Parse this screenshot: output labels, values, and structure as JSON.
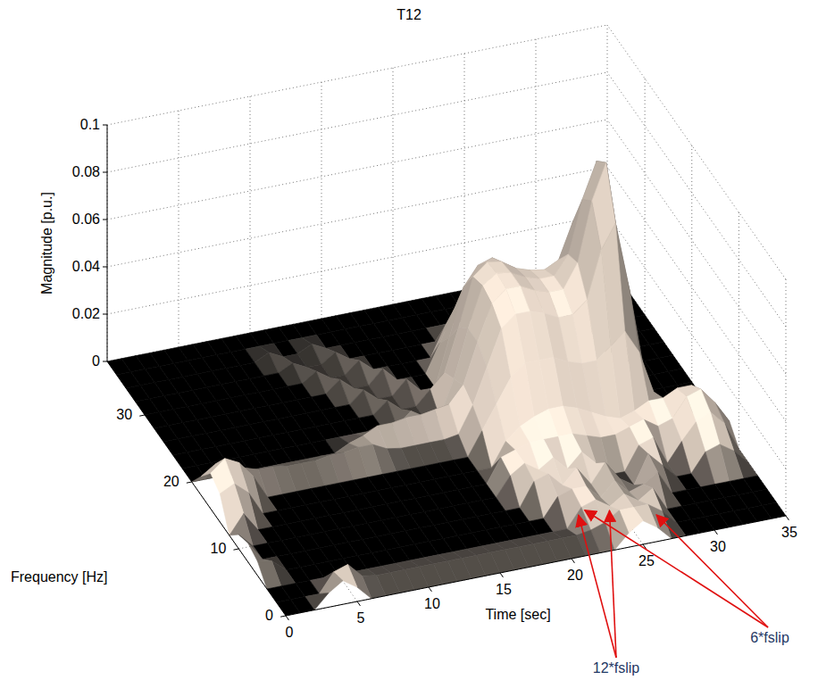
{
  "chart_data": {
    "type": "surface",
    "title": "T12",
    "x_label": "Time [sec]",
    "y_label": "Frequency [Hz]",
    "z_label": "Magnitude [p.u.]",
    "x": [
      0,
      1,
      2,
      3,
      4,
      5,
      6,
      7,
      8,
      9,
      10,
      11,
      12,
      13,
      14,
      15,
      16,
      17,
      18,
      19,
      20,
      21,
      22,
      23,
      24,
      25,
      26,
      27,
      28,
      29,
      30,
      31,
      32,
      33,
      34,
      35
    ],
    "y": [
      0,
      2,
      4,
      6,
      8,
      10,
      12,
      14,
      16,
      18,
      20,
      22,
      24,
      26,
      28,
      30,
      32,
      34,
      36,
      38
    ],
    "z": [
      [
        0,
        0,
        0,
        0.006,
        0.01,
        0.006,
        0,
        0,
        0,
        0,
        0,
        0,
        0,
        0,
        0,
        0,
        0,
        0,
        0,
        0,
        0,
        0,
        0,
        0,
        0.006,
        0.01,
        0.006,
        0,
        0,
        0,
        0,
        0,
        0,
        0,
        0,
        0
      ],
      [
        0,
        0,
        0,
        0,
        0.008,
        0.01,
        0.004,
        0.003,
        0.003,
        0.003,
        0.003,
        0.003,
        0.003,
        0.003,
        0.003,
        0.003,
        0.003,
        0.003,
        0.003,
        0.003,
        0.003,
        0.003,
        0.004,
        0.006,
        0.01,
        0.01,
        0.01,
        0.006,
        0,
        0,
        0,
        0,
        0,
        0,
        0,
        0
      ],
      [
        0,
        0,
        0,
        0,
        0,
        0,
        0,
        0,
        0,
        0,
        0,
        0,
        0,
        0,
        0,
        0,
        0,
        0,
        0,
        0,
        0,
        0,
        0.008,
        0.01,
        0.006,
        0.01,
        0.006,
        0.01,
        0,
        0,
        0,
        0,
        0,
        0,
        0,
        0
      ],
      [
        0.006,
        0.005,
        0,
        0,
        0,
        0,
        0,
        0,
        0,
        0,
        0,
        0,
        0,
        0,
        0,
        0,
        0,
        0,
        0,
        0,
        0,
        0.008,
        0.01,
        0.01,
        0.004,
        0.01,
        0.004,
        0.006,
        0.01,
        0,
        0,
        0,
        0,
        0,
        0,
        0
      ],
      [
        0.008,
        0,
        0,
        0,
        0,
        0,
        0,
        0,
        0,
        0,
        0,
        0,
        0,
        0,
        0,
        0,
        0,
        0,
        0,
        0,
        0.01,
        0.012,
        0.006,
        0.012,
        0.004,
        0.012,
        0.004,
        0,
        0.012,
        0.006,
        0,
        0,
        0.008,
        0.01,
        0.006,
        0
      ],
      [
        0.006,
        0,
        0,
        0,
        0,
        0,
        0,
        0,
        0,
        0,
        0,
        0,
        0,
        0,
        0,
        0,
        0,
        0,
        0,
        0.008,
        0.012,
        0.008,
        0.012,
        0.006,
        0.012,
        0.006,
        0,
        0,
        0.01,
        0.012,
        0,
        0.008,
        0.015,
        0.018,
        0.012,
        0
      ],
      [
        0,
        0.008,
        0,
        0,
        0,
        0,
        0,
        0,
        0,
        0,
        0,
        0,
        0,
        0,
        0,
        0,
        0,
        0,
        0,
        0.01,
        0.012,
        0.014,
        0.014,
        0.014,
        0.014,
        0.012,
        0.01,
        0.01,
        0.012,
        0.014,
        0.01,
        0.012,
        0.02,
        0.022,
        0.015,
        0.006
      ],
      [
        0.012,
        0.015,
        0.01,
        0,
        0,
        0,
        0,
        0,
        0,
        0,
        0,
        0,
        0,
        0,
        0,
        0,
        0,
        0,
        0,
        0,
        0.01,
        0.015,
        0.018,
        0.02,
        0.02,
        0.018,
        0.015,
        0.012,
        0.01,
        0.012,
        0.015,
        0.015,
        0.018,
        0.018,
        0.012,
        0
      ],
      [
        0.015,
        0.02,
        0.017,
        0.01,
        0,
        0,
        0,
        0,
        0,
        0,
        0,
        0,
        0,
        0,
        0,
        0,
        0,
        0,
        0,
        0.01,
        0.02,
        0.03,
        0.035,
        0.035,
        0.035,
        0.032,
        0.03,
        0.03,
        0.035,
        0.04,
        0.03,
        0.012,
        0,
        0,
        0,
        0
      ],
      [
        0.008,
        0.012,
        0.01,
        0.008,
        0.006,
        0.006,
        0.005,
        0.005,
        0.005,
        0.006,
        0.006,
        0.007,
        0.007,
        0.004,
        0.003,
        0.003,
        0.003,
        0.003,
        0.004,
        0.015,
        0.03,
        0.045,
        0.05,
        0.05,
        0.048,
        0.045,
        0.045,
        0.05,
        0.07,
        0.08,
        0.05,
        0.015,
        0,
        0,
        0,
        0
      ],
      [
        0,
        0,
        0,
        0,
        0,
        0,
        0,
        0,
        0,
        0,
        0,
        0.003,
        0.005,
        0.008,
        0.008,
        0.009,
        0.009,
        0.01,
        0.011,
        0.018,
        0.035,
        0.05,
        0.055,
        0.055,
        0.052,
        0.05,
        0.05,
        0.06,
        0.085,
        0.1,
        0.06,
        0.018,
        0,
        0,
        0,
        0
      ],
      [
        0,
        0,
        0,
        0,
        0,
        0,
        0,
        0,
        0,
        0,
        0,
        0,
        0,
        0,
        0,
        0,
        0.005,
        0,
        0,
        0.015,
        0.035,
        0.052,
        0.056,
        0.055,
        0.052,
        0.05,
        0.05,
        0.058,
        0.08,
        0.095,
        0.055,
        0.015,
        0,
        0,
        0,
        0
      ],
      [
        0,
        0,
        0,
        0,
        0,
        0,
        0,
        0,
        0,
        0,
        0,
        0,
        0,
        0,
        0,
        0.005,
        0,
        0,
        0.006,
        0.012,
        0.03,
        0.05,
        0.055,
        0.054,
        0.05,
        0.048,
        0.047,
        0.05,
        0.065,
        0.07,
        0.04,
        0.012,
        0,
        0,
        0,
        0
      ],
      [
        0,
        0,
        0,
        0,
        0,
        0,
        0,
        0,
        0,
        0,
        0,
        0,
        0,
        0,
        0.005,
        0,
        0,
        0.006,
        0,
        0,
        0.02,
        0.04,
        0.048,
        0.05,
        0.046,
        0.042,
        0.04,
        0.04,
        0.045,
        0.045,
        0.025,
        0,
        0,
        0,
        0,
        0
      ],
      [
        0,
        0,
        0,
        0,
        0,
        0,
        0,
        0,
        0,
        0,
        0,
        0,
        0,
        0.005,
        0,
        0,
        0.006,
        0,
        0,
        0,
        0.012,
        0.025,
        0.032,
        0.035,
        0.032,
        0.03,
        0.028,
        0.028,
        0.03,
        0.028,
        0.015,
        0,
        0,
        0,
        0,
        0
      ],
      [
        0,
        0,
        0,
        0,
        0,
        0,
        0,
        0,
        0,
        0,
        0,
        0,
        0.004,
        0,
        0,
        0.005,
        0,
        0,
        0,
        0,
        0,
        0.012,
        0.016,
        0.018,
        0.016,
        0.015,
        0.014,
        0.014,
        0.015,
        0.014,
        0.008,
        0,
        0,
        0,
        0,
        0
      ],
      [
        0,
        0,
        0,
        0,
        0,
        0,
        0,
        0,
        0,
        0,
        0,
        0.003,
        0,
        0,
        0.004,
        0,
        0,
        0,
        0,
        0,
        0,
        0,
        0.006,
        0.008,
        0.007,
        0.006,
        0.006,
        0.006,
        0.006,
        0.005,
        0,
        0,
        0,
        0,
        0,
        0
      ],
      [
        0,
        0,
        0,
        0,
        0,
        0,
        0,
        0,
        0,
        0,
        0.003,
        0,
        0,
        0.003,
        0,
        0,
        0,
        0,
        0,
        0,
        0,
        0,
        0,
        0,
        0,
        0,
        0,
        0,
        0,
        0,
        0,
        0,
        0,
        0,
        0,
        0
      ],
      [
        0,
        0,
        0,
        0,
        0,
        0,
        0,
        0,
        0,
        0,
        0,
        0,
        0,
        0,
        0,
        0,
        0,
        0,
        0,
        0,
        0,
        0,
        0,
        0,
        0,
        0,
        0,
        0,
        0,
        0,
        0,
        0,
        0,
        0,
        0,
        0
      ],
      [
        0,
        0,
        0,
        0,
        0,
        0,
        0,
        0,
        0,
        0,
        0,
        0,
        0,
        0,
        0,
        0,
        0,
        0,
        0,
        0,
        0,
        0,
        0,
        0,
        0,
        0,
        0,
        0,
        0,
        0,
        0,
        0,
        0,
        0,
        0,
        0
      ]
    ],
    "xlim": [
      0,
      35
    ],
    "ylim": [
      0,
      38
    ],
    "zlim": [
      0,
      0.1
    ],
    "xticks": [
      0,
      5,
      10,
      15,
      20,
      25,
      30,
      35
    ],
    "yticks": [
      0,
      10,
      20,
      30
    ],
    "zticks": [
      0,
      0.02,
      0.04,
      0.06,
      0.08,
      0.1
    ],
    "grid": true,
    "annotations": [
      {
        "text": "12*fslip",
        "points": [
          [
            22.3,
            5.5
          ],
          [
            24.4,
            5.3
          ]
        ]
      },
      {
        "text": "6*fslip",
        "points": [
          [
            22.9,
            6.0
          ],
          [
            27.1,
            3.5
          ]
        ]
      }
    ]
  }
}
